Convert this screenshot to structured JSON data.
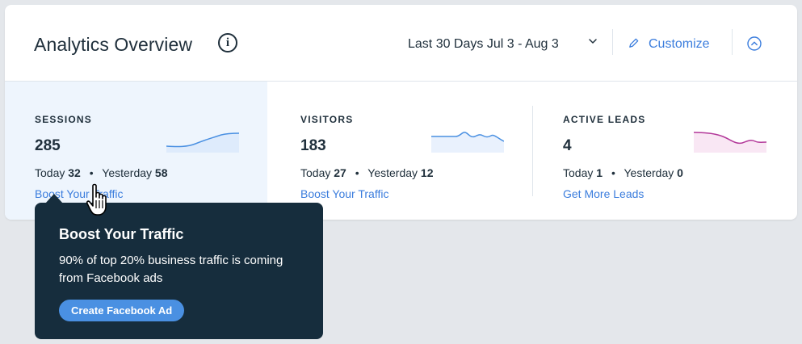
{
  "header": {
    "title": "Analytics Overview",
    "info_icon": "info-circle-icon",
    "date_range": "Last 30 Days Jul 3 - Aug 3",
    "customize_label": "Customize"
  },
  "metrics": [
    {
      "label": "SESSIONS",
      "value": "285",
      "today_label": "Today",
      "today_value": "32",
      "yesterday_label": "Yesterday",
      "yesterday_value": "58",
      "link": "Boost Your Traffic",
      "spark_color": "#4a90e2"
    },
    {
      "label": "VISITORS",
      "value": "183",
      "today_label": "Today",
      "today_value": "27",
      "yesterday_label": "Yesterday",
      "yesterday_value": "12",
      "link": "Boost Your Traffic",
      "spark_color": "#4a90e2"
    },
    {
      "label": "ACTIVE LEADS",
      "value": "4",
      "today_label": "Today",
      "today_value": "1",
      "yesterday_label": "Yesterday",
      "yesterday_value": "0",
      "link": "Get More Leads",
      "spark_color": "#b3399a"
    }
  ],
  "separator": "•",
  "tooltip": {
    "title": "Boost Your Traffic",
    "body": "90% of top 20% business traffic is coming from Facebook ads",
    "button": "Create Facebook Ad"
  },
  "colors": {
    "accent": "#3b7ddd",
    "tooltip_bg": "#162d3d",
    "button_bg": "#4a90e2",
    "selected_tile_bg": "#eef5fd",
    "page_bg": "#e4e7eb"
  }
}
